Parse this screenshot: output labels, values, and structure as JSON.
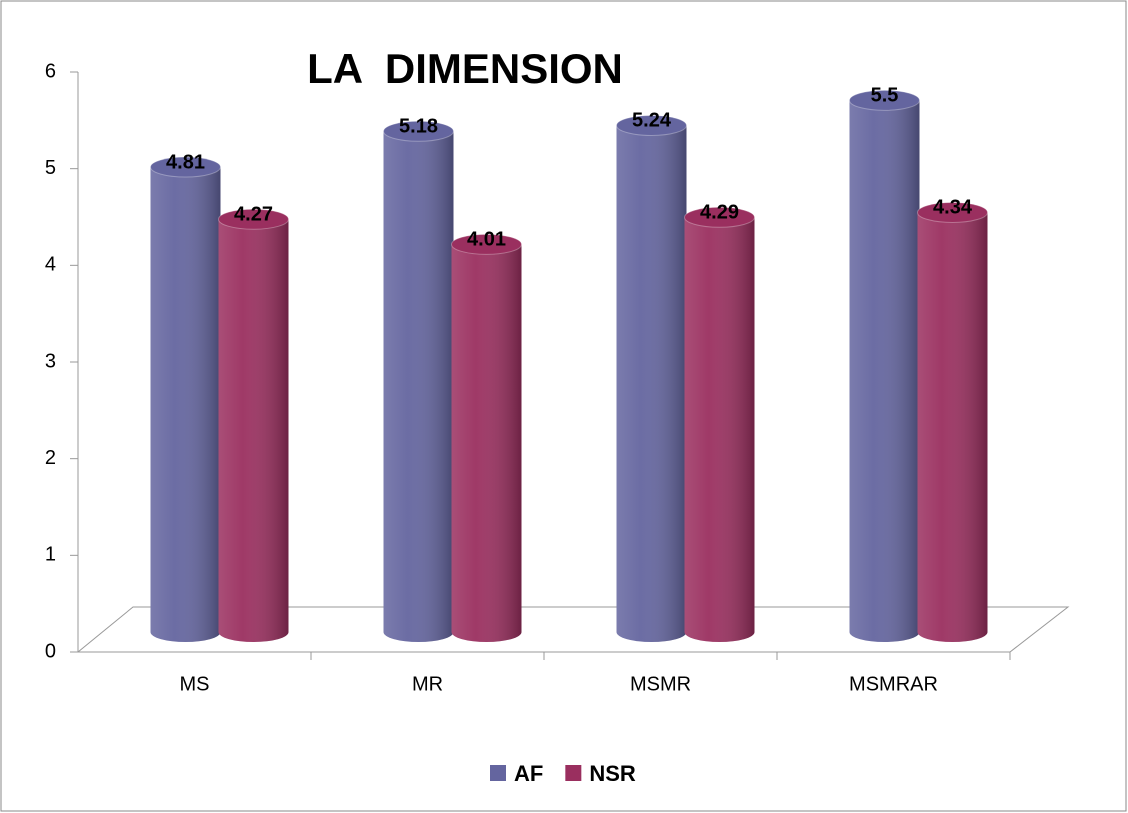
{
  "chart_data": {
    "type": "bar",
    "title": "LA  DIMENSION",
    "categories": [
      "MS",
      "MR",
      "MSMR",
      "MSMRAR"
    ],
    "series": [
      {
        "name": "AF",
        "color": "#64659f",
        "values": [
          4.81,
          5.18,
          5.24,
          5.5
        ]
      },
      {
        "name": "NSR",
        "color": "#9a2f5f",
        "values": [
          4.27,
          4.01,
          4.29,
          4.34
        ]
      }
    ],
    "ylim": [
      0,
      6
    ],
    "yticks": [
      0,
      1,
      2,
      3,
      4,
      5,
      6
    ],
    "legend": "bottom"
  }
}
